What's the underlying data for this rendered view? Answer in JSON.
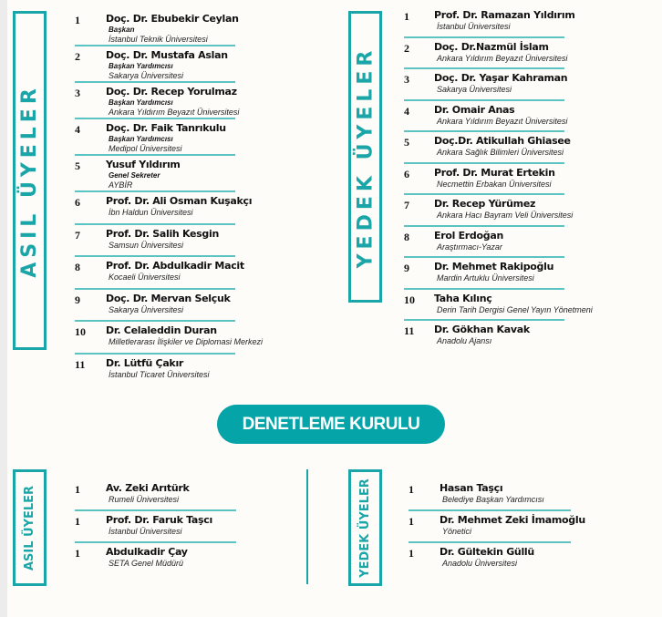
{
  "main": {
    "asil_label": "ASIL ÜYELER",
    "yedek_label": "YEDEK ÜYELER",
    "asil": [
      {
        "no": "1",
        "name": "Doç. Dr. Ebubekir Ceylan",
        "role": "Başkan",
        "aff": "İstanbul Teknik Üniversitesi"
      },
      {
        "no": "2",
        "name": "Doç. Dr. Mustafa Aslan",
        "role": "Başkan Yardımcısı",
        "aff": "Sakarya Üniversitesi"
      },
      {
        "no": "3",
        "name": "Doç. Dr. Recep Yorulmaz",
        "role": "Başkan Yardımcısı",
        "aff": "Ankara Yıldırım Beyazıt Üniversitesi"
      },
      {
        "no": "4",
        "name": "Doç. Dr. Faik Tanrıkulu",
        "role": "Başkan Yardımcısı",
        "aff": "Medipol Üniversitesi"
      },
      {
        "no": "5",
        "name": "Yusuf Yıldırım",
        "role": "Genel Sekreter",
        "aff": "AYBİR"
      },
      {
        "no": "6",
        "name": "Prof. Dr. Ali Osman Kuşakçı",
        "aff": "İbn Haldun Üniversitesi"
      },
      {
        "no": "7",
        "name": "Prof. Dr. Salih Kesgin",
        "aff": "Samsun Üniversitesi"
      },
      {
        "no": "8",
        "name": "Prof. Dr. Abdulkadir Macit",
        "aff": "Kocaeli Üniversitesi"
      },
      {
        "no": "9",
        "name": "Doç. Dr. Mervan Selçuk",
        "aff": "Sakarya Üniversitesi"
      },
      {
        "no": "10",
        "name": "Dr. Celaleddin Duran",
        "aff": "Milletlerarası İlişkiler ve Diplomasi Merkezi"
      },
      {
        "no": "11",
        "name": "Dr. Lütfü Çakır",
        "aff": "İstanbul Ticaret Üniversitesi"
      }
    ],
    "yedek": [
      {
        "no": "1",
        "name": "Prof. Dr. Ramazan Yıldırım",
        "aff": "İstanbul Üniversitesi"
      },
      {
        "no": "2",
        "name": "Doç. Dr.Nazmül İslam",
        "aff": "Ankara Yıldırım Beyazıt Üniversitesi"
      },
      {
        "no": "3",
        "name": "Doç. Dr. Yaşar Kahraman",
        "aff": "Sakarya Üniversitesi"
      },
      {
        "no": "4",
        "name": "Dr. Omair Anas",
        "aff": "Ankara Yıldırım Beyazıt Üniversitesi"
      },
      {
        "no": "5",
        "name": "Doç.Dr. Atikullah Ghiasee",
        "aff": "Ankara Sağlık Bilimleri Üniversitesi"
      },
      {
        "no": "6",
        "name": "Prof. Dr. Murat Ertekin",
        "aff": "Necmettin Erbakan Üniversitesi"
      },
      {
        "no": "7",
        "name": "Dr. Recep Yürümez",
        "aff": "Ankara Hacı Bayram Veli Üniversitesi"
      },
      {
        "no": "8",
        "name": "Erol Erdoğan",
        "aff": "Araştırmacı-Yazar"
      },
      {
        "no": "9",
        "name": "Dr. Mehmet Rakipoğlu",
        "aff": "Mardin Artuklu Üniversitesi"
      },
      {
        "no": "10",
        "name": "Taha Kılınç",
        "aff": "Derin Tarih Dergisi Genel Yayın Yönetmeni"
      },
      {
        "no": "11",
        "name": "Dr. Gökhan Kavak",
        "aff": "Anadolu Ajansı"
      }
    ]
  },
  "denetleme": {
    "title": "DENETLEME KURULU",
    "asil_label": "ASIL ÜYELER",
    "yedek_label": "YEDEK ÜYELER",
    "asil": [
      {
        "no": "1",
        "name": "Av. Zeki Arıtürk",
        "aff": "Rumeli Üniversitesi"
      },
      {
        "no": "1",
        "name": "Prof. Dr. Faruk Taşcı",
        "aff": "İstanbul Üniversitesi"
      },
      {
        "no": "1",
        "name": "Abdulkadir Çay",
        "aff": "SETA Genel Müdürü"
      }
    ],
    "yedek": [
      {
        "no": "1",
        "name": "Hasan Taşçı",
        "aff": "Belediye Başkan Yardımcısı"
      },
      {
        "no": "1",
        "name": "Dr. Mehmet Zeki İmamoğlu",
        "aff": "Yönetici"
      },
      {
        "no": "1",
        "name": "Dr. Gültekin Güllü",
        "aff": "Anadolu Üniversitesi"
      }
    ]
  },
  "colors": {
    "accent": "#1aa5a8",
    "pill": "#05a4a8"
  }
}
